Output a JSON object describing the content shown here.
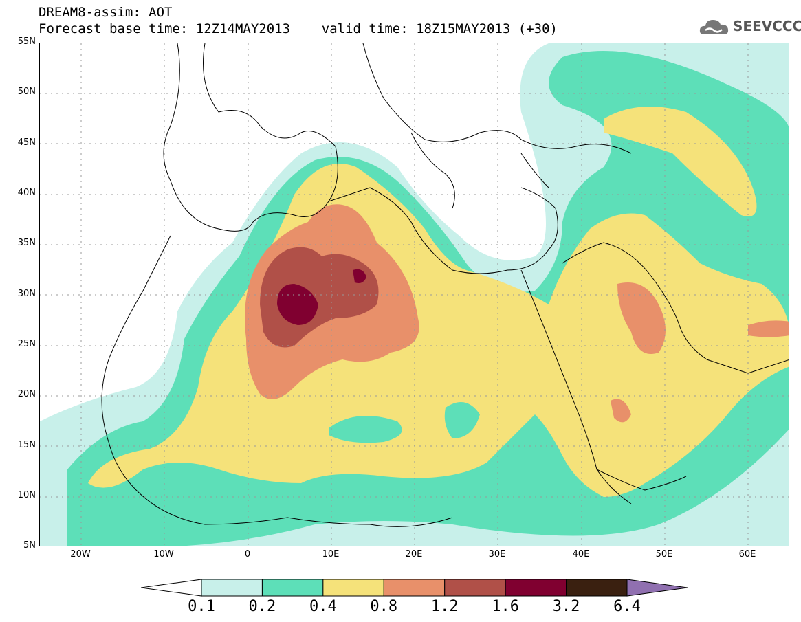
{
  "title": {
    "line1": "DREAM8-assim: AOT",
    "line2": "Forecast base time: 12Z14MAY2013    valid time: 18Z15MAY2013 (+30)"
  },
  "logo": {
    "text": "SEEVCCC",
    "icon": "cloud-icon"
  },
  "map": {
    "lat_labels": [
      "55N",
      "50N",
      "45N",
      "40N",
      "35N",
      "30N",
      "25N",
      "20N",
      "15N",
      "10N",
      "5N"
    ],
    "lon_labels": [
      "20W",
      "10W",
      "0",
      "10E",
      "20E",
      "30E",
      "40E",
      "50E",
      "60E"
    ],
    "lat_range": [
      5,
      55
    ],
    "lon_range": [
      -25,
      65
    ],
    "grid": true,
    "variable": "AOT"
  },
  "colorbar": {
    "labels": [
      "0.1",
      "0.2",
      "0.4",
      "0.8",
      "1.2",
      "1.6",
      "3.2",
      "6.4"
    ],
    "colors": [
      "#ffffff",
      "#c8f0ea",
      "#5ddfb8",
      "#f5e27a",
      "#e8906a",
      "#b05048",
      "#800030",
      "#3a2010",
      "#9070b0"
    ]
  }
}
